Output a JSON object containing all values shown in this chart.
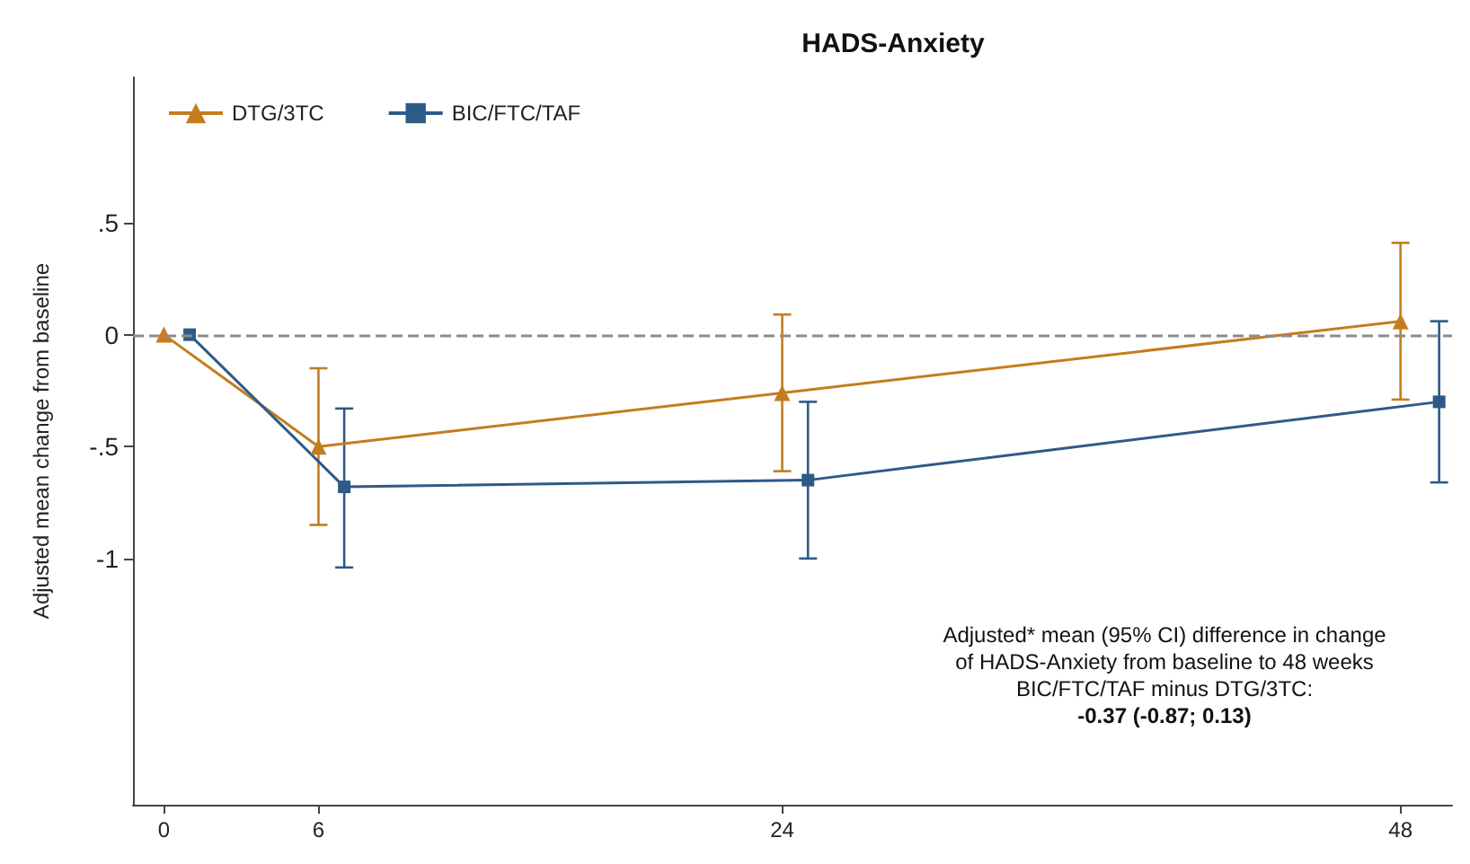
{
  "chart_data": {
    "type": "line",
    "title": "HADS-Anxiety",
    "ylabel": "Adjusted mean change from baseline",
    "xlim": [
      -1.2,
      50
    ],
    "xticks": [
      0,
      6,
      24,
      48
    ],
    "ylim": [
      -2.1,
      1.15
    ],
    "yticks": [
      {
        "value": 0.5,
        "label": ".5"
      },
      0,
      {
        "value": -0.5,
        "label": "-.5"
      },
      -1
    ],
    "grid": false,
    "legend": "top left",
    "series": [
      {
        "name": "DTG/3TC",
        "color": "#c47d1e",
        "marker": "triangle",
        "x": [
          0,
          6,
          24,
          48
        ],
        "values": [
          0,
          -0.5,
          -0.26,
          0.06
        ],
        "errors": [
          null,
          [
            -0.85,
            -0.15
          ],
          [
            -0.61,
            0.09
          ],
          [
            -0.29,
            0.41
          ]
        ]
      },
      {
        "name": "BIC/FTC/TAF",
        "color": "#2e5a87",
        "marker": "square",
        "x": [
          1,
          7,
          25,
          49.5
        ],
        "values": [
          0,
          -0.68,
          -0.65,
          -0.3
        ],
        "errors": [
          null,
          [
            -1.04,
            -0.33
          ],
          [
            -1.0,
            -0.3
          ],
          [
            -0.66,
            0.06
          ]
        ]
      }
    ],
    "ref_lines": [
      {
        "axis": "y",
        "value": 0,
        "color": "#8c8c8c",
        "line_style": "dashed"
      }
    ],
    "annotations": [
      "Adjusted* mean (95% CI) difference in change\nof HADS-Anxiety from baseline to 48 weeks\nBIC/FTC/TAF minus DTG/3TC:",
      "-0.37 (-0.87; 0.13)"
    ]
  }
}
